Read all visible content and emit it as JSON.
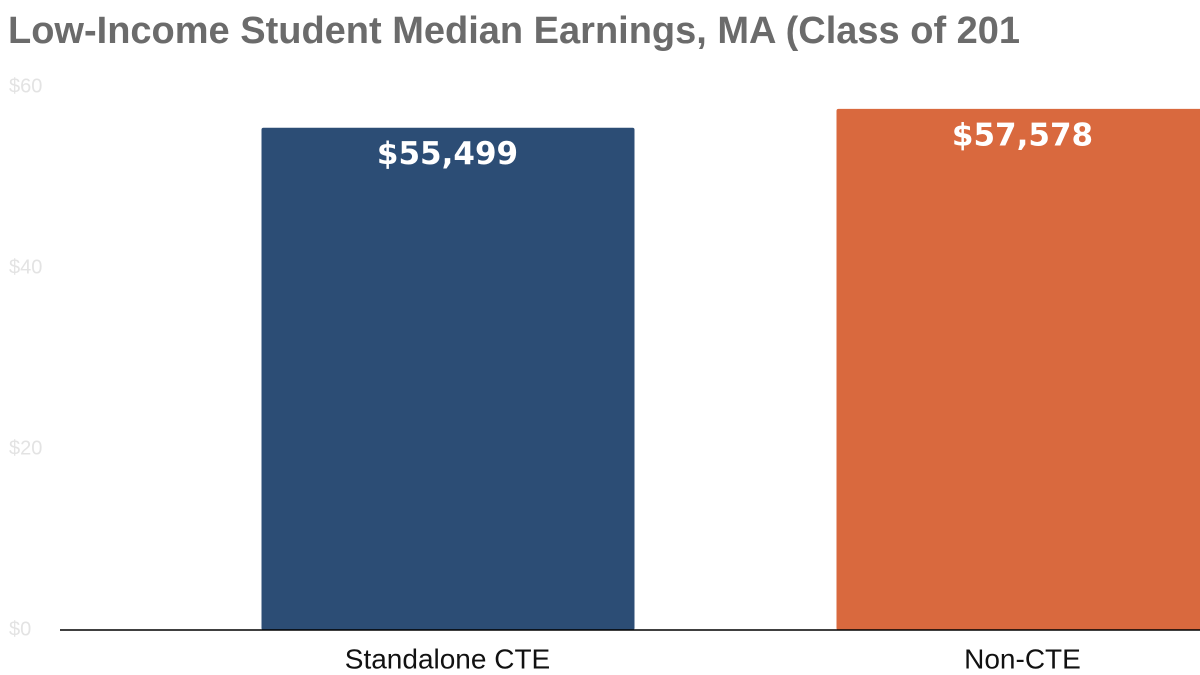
{
  "chart_data": {
    "type": "bar",
    "title": "Low-Income Student Median Earnings, MA (Class of 201",
    "categories": [
      "Standalone CTE",
      "Non-CTE"
    ],
    "values": [
      55.499,
      57.578
    ],
    "value_labels": [
      "$55,499",
      "$57,578"
    ],
    "colors": [
      "#2c4d75",
      "#d9693e"
    ],
    "ylim": [
      0,
      60
    ],
    "yticks": [
      {
        "value": 0,
        "label": "$0"
      },
      {
        "value": 20,
        "label": "$20"
      },
      {
        "value": 40,
        "label": "$40"
      },
      {
        "value": 60,
        "label": "$60"
      }
    ],
    "grid": false
  }
}
